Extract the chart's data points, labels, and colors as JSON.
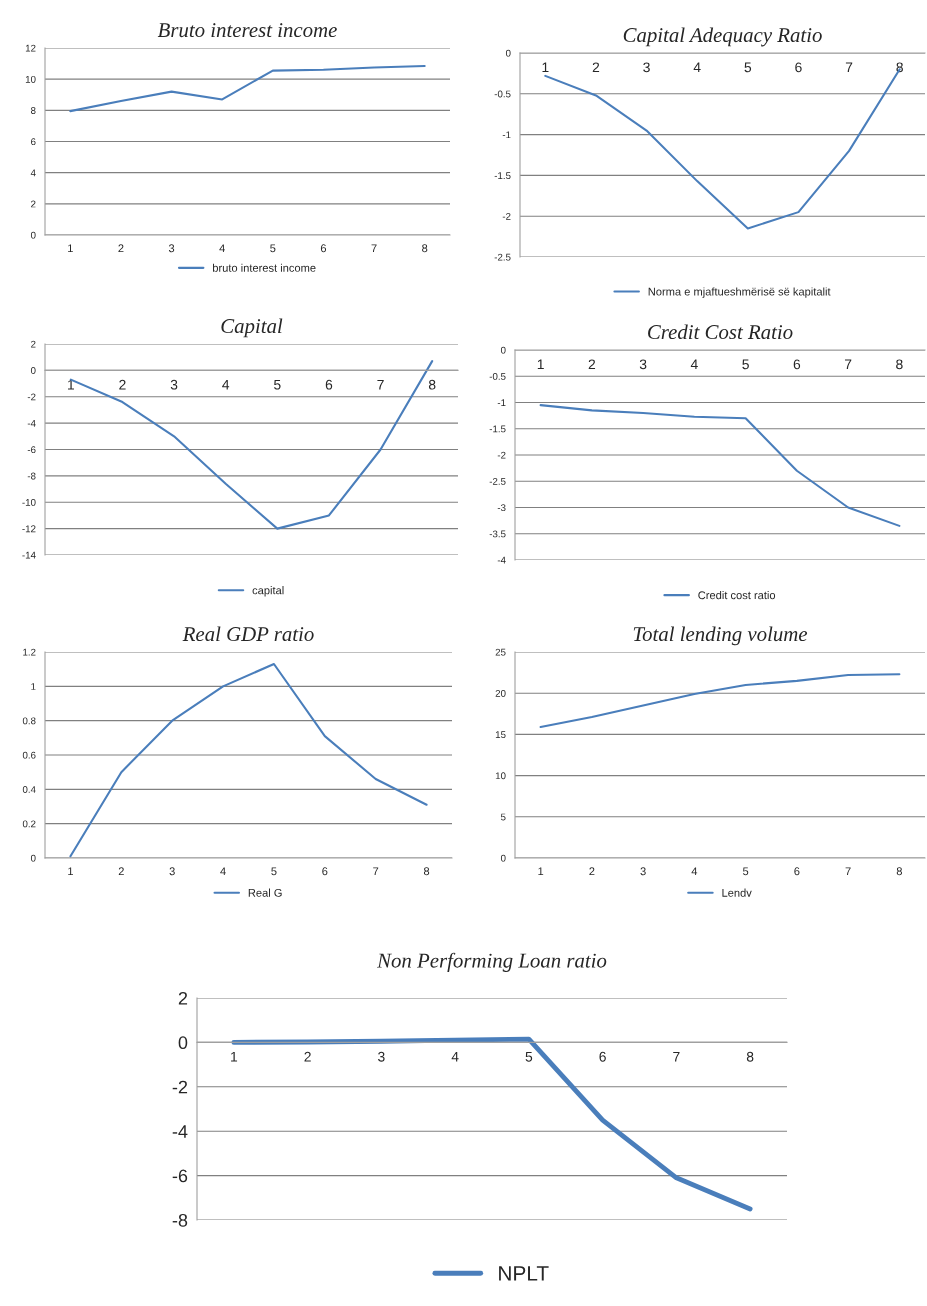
{
  "chart_data": [
    {
      "type": "line",
      "title": "Bruto interest income",
      "categories": [
        "1",
        "2",
        "3",
        "4",
        "5",
        "6",
        "7",
        "8"
      ],
      "series": [
        {
          "name": "bruto interest income",
          "color": "#4a7ebb",
          "values": [
            7.95,
            8.6,
            9.2,
            8.7,
            10.55,
            10.6,
            10.75,
            10.85
          ]
        }
      ],
      "ylim": [
        0,
        12
      ],
      "yticks": [
        0,
        2,
        4,
        6,
        8,
        10,
        12
      ],
      "grid": "y",
      "legend": "bottom"
    },
    {
      "type": "line",
      "title": "Capital Adequacy Ratio",
      "categories": [
        "1",
        "2",
        "3",
        "4",
        "5",
        "6",
        "7",
        "8"
      ],
      "series": [
        {
          "name": "Norma e mjaftueshmërisë së kapitalit",
          "color": "#4a7ebb",
          "values": [
            -0.28,
            -0.52,
            -0.95,
            -1.57,
            -2.15,
            -1.95,
            -1.2,
            -0.2
          ]
        }
      ],
      "ylim": [
        -2.5,
        0
      ],
      "yticks": [
        -2.5,
        -2,
        -1.5,
        -1,
        -0.5,
        0
      ],
      "grid": "y",
      "legend": "bottom"
    },
    {
      "type": "line",
      "title": "Capital",
      "categories": [
        "1",
        "2",
        "3",
        "4",
        "5",
        "6",
        "7",
        "8"
      ],
      "series": [
        {
          "name": "capital",
          "color": "#4a7ebb",
          "values": [
            -0.7,
            -2.4,
            -5.0,
            -8.6,
            -12.0,
            -11.0,
            -6.0,
            0.7
          ]
        }
      ],
      "ylim": [
        -14,
        2
      ],
      "yticks": [
        -14,
        -12,
        -10,
        -8,
        -6,
        -4,
        -2,
        0,
        2
      ],
      "grid": "y",
      "legend": "bottom"
    },
    {
      "type": "line",
      "title": "Credit Cost Ratio",
      "categories": [
        "1",
        "2",
        "3",
        "4",
        "5",
        "6",
        "7",
        "8"
      ],
      "series": [
        {
          "name": "Credit cost ratio",
          "color": "#4a7ebb",
          "values": [
            -1.05,
            -1.15,
            -1.2,
            -1.27,
            -1.3,
            -2.3,
            -3.0,
            -3.35
          ]
        }
      ],
      "ylim": [
        -4,
        0
      ],
      "yticks": [
        -4,
        -3.5,
        -3,
        -2.5,
        -2,
        -1.5,
        -1,
        -0.5,
        0
      ],
      "grid": "y",
      "legend": "bottom"
    },
    {
      "type": "line",
      "title": "Real GDP ratio",
      "categories": [
        "1",
        "2",
        "3",
        "4",
        "5",
        "6",
        "7",
        "8"
      ],
      "series": [
        {
          "name": "Real G",
          "color": "#4a7ebb",
          "values": [
            0.01,
            0.5,
            0.8,
            1.0,
            1.13,
            0.71,
            0.46,
            0.31
          ]
        }
      ],
      "ylim": [
        0,
        1.2
      ],
      "yticks": [
        0,
        0.2,
        0.4,
        0.6,
        0.8,
        1,
        1.2
      ],
      "grid": "y",
      "legend": "bottom"
    },
    {
      "type": "line",
      "title": "Total lending volume",
      "categories": [
        "1",
        "2",
        "3",
        "4",
        "5",
        "6",
        "7",
        "8"
      ],
      "series": [
        {
          "name": "Lendv",
          "color": "#4a7ebb",
          "values": [
            15.9,
            17.1,
            18.5,
            19.9,
            21.0,
            21.5,
            22.2,
            22.3
          ]
        }
      ],
      "ylim": [
        0,
        25
      ],
      "yticks": [
        0,
        5,
        10,
        15,
        20,
        25
      ],
      "grid": "y",
      "legend": "bottom"
    },
    {
      "type": "line",
      "title": "Non Performing Loan ratio",
      "categories": [
        "1",
        "2",
        "3",
        "4",
        "5",
        "6",
        "7",
        "8"
      ],
      "series": [
        {
          "name": "NPLT",
          "color": "#4a7ebb",
          "values": [
            0,
            0.02,
            0.05,
            0.1,
            0.15,
            -3.5,
            -6.1,
            -7.5
          ]
        }
      ],
      "ylim": [
        -8,
        2
      ],
      "yticks": [
        -8,
        -6,
        -4,
        -2,
        0,
        2
      ],
      "grid": "y",
      "legend": "bottom"
    }
  ]
}
